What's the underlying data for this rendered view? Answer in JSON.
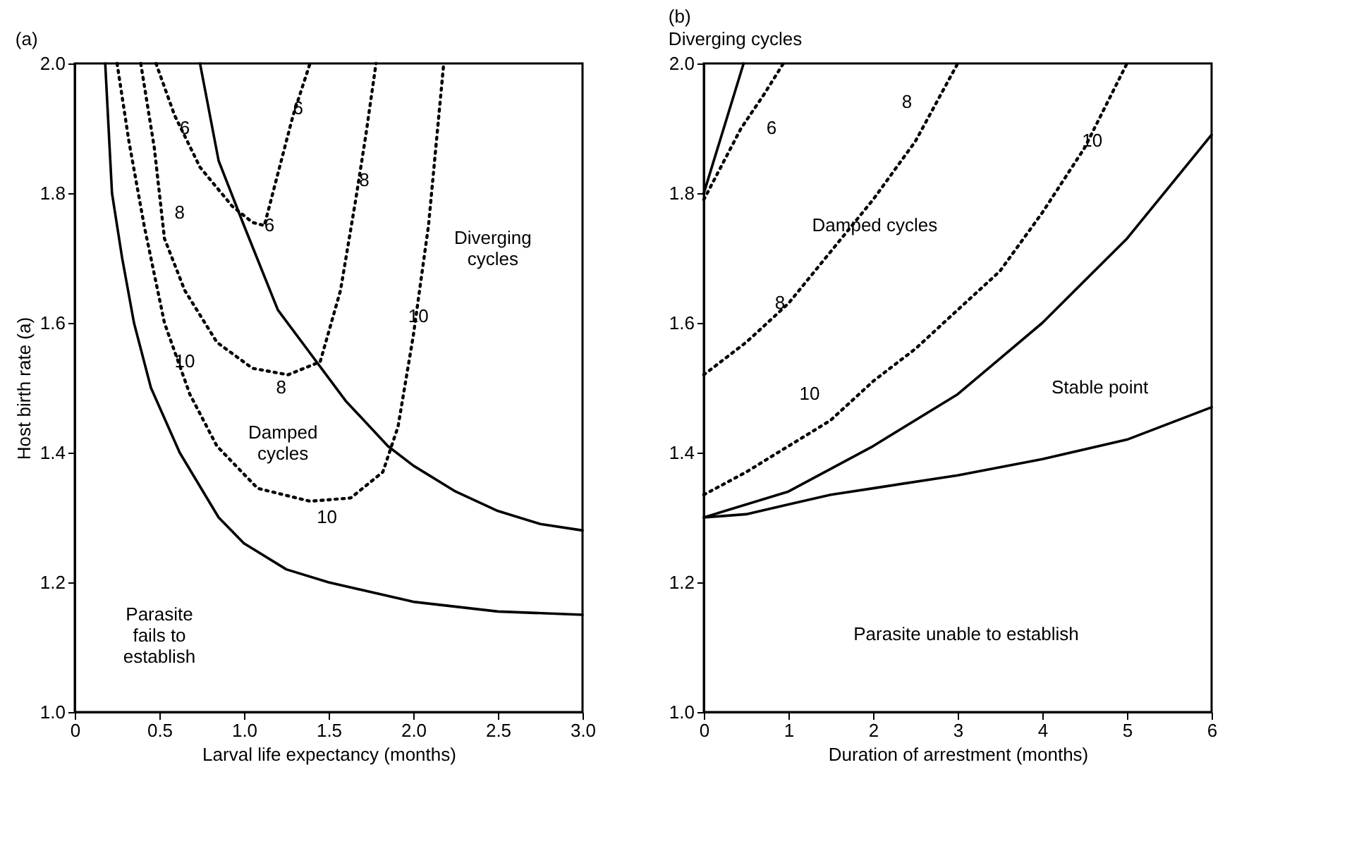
{
  "chart_data": [
    {
      "type": "line",
      "title": "(a)",
      "xlabel": "Larval life expectancy (months)",
      "ylabel": "Host birth rate (a)",
      "xlim": [
        0,
        3.0
      ],
      "ylim": [
        1.0,
        2.0
      ],
      "xticks": [
        0,
        {
          "value": 0.5,
          "label": "0.5"
        },
        {
          "value": 1.0,
          "label": "1.0"
        },
        {
          "value": 1.5,
          "label": "1.5"
        },
        {
          "value": 2.0,
          "label": "2.0"
        },
        {
          "value": 2.5,
          "label": "2.5"
        },
        {
          "value": 3.0,
          "label": "3.0"
        }
      ],
      "yticks": [
        {
          "value": 1.0,
          "label": "1.0"
        },
        {
          "value": 1.2,
          "label": "1.2"
        },
        {
          "value": 1.4,
          "label": "1.4"
        },
        {
          "value": 1.6,
          "label": "1.6"
        },
        {
          "value": 1.8,
          "label": "1.8"
        },
        {
          "value": 2.0,
          "label": "2.0"
        }
      ],
      "grid": false,
      "marker": "none",
      "series": [
        {
          "color": "#000000",
          "line_style": "solid",
          "x": [
            0.18,
            0.22,
            0.28,
            0.35,
            0.45,
            0.62,
            0.85,
            1.0,
            1.25,
            1.5,
            2.0,
            2.5,
            3.0
          ],
          "values": [
            2.0,
            1.8,
            1.7,
            1.6,
            1.5,
            1.4,
            1.3,
            1.26,
            1.22,
            1.2,
            1.17,
            1.155,
            1.15
          ]
        },
        {
          "color": "#000000",
          "line_style": "solid",
          "x": [
            0.74,
            0.85,
            1.0,
            1.2,
            1.4,
            1.6,
            1.85,
            2.0,
            2.25,
            2.5,
            2.75,
            3.0
          ],
          "values": [
            2.0,
            1.85,
            1.75,
            1.62,
            1.55,
            1.48,
            1.41,
            1.38,
            1.34,
            1.31,
            1.29,
            1.28
          ]
        },
        {
          "color": "#000000",
          "line_style": "dotted",
          "x": [
            0.48,
            0.59,
            0.74,
            0.93,
            1.05,
            1.12,
            1.17,
            1.29,
            1.39
          ],
          "values": [
            2.0,
            1.92,
            1.84,
            1.78,
            1.755,
            1.75,
            1.8,
            1.92,
            2.0
          ]
        },
        {
          "color": "#000000",
          "line_style": "dotted",
          "x": [
            0.39,
            0.47,
            0.53,
            0.65,
            0.84,
            1.05,
            1.26,
            1.45,
            1.57,
            1.66,
            1.72,
            1.78
          ],
          "values": [
            2.0,
            1.87,
            1.73,
            1.65,
            1.57,
            1.53,
            1.52,
            1.54,
            1.65,
            1.79,
            1.89,
            2.0
          ]
        },
        {
          "color": "#000000",
          "line_style": "dotted",
          "x": [
            0.25,
            0.32,
            0.41,
            0.53,
            0.68,
            0.84,
            1.08,
            1.39,
            1.63,
            1.82,
            1.91,
            2.0,
            2.09,
            2.18
          ],
          "values": [
            2.0,
            1.88,
            1.75,
            1.6,
            1.49,
            1.41,
            1.345,
            1.325,
            1.33,
            1.37,
            1.44,
            1.58,
            1.75,
            2.0
          ]
        }
      ],
      "annotations": [
        {
          "text": "6",
          "x": 0.65,
          "y": 1.9
        },
        {
          "text": "6",
          "x": 1.32,
          "y": 1.93
        },
        {
          "text": "6",
          "x": 1.15,
          "y": 1.75
        },
        "8",
        "8",
        {
          "text": "8",
          "x": 1.71,
          "y": 1.82
        },
        {
          "text": "10",
          "x": 0.65,
          "y": 1.54
        },
        "10",
        {
          "text": "10",
          "x": 2.03,
          "y": 1.61
        },
        "Diverging\ncycles",
        "Damped\ncycles",
        "Parasite\nfails to\nestablish"
      ]
    },
    {
      "type": "line",
      "title": "(b)",
      "subtitle": "Diverging cycles",
      "xlabel": "Duration of arrestment (months)",
      "xlim": [
        0,
        6
      ],
      "ylim": [
        1.0,
        2.0
      ],
      "xticks": [
        0,
        1,
        2,
        3,
        4,
        5,
        6
      ],
      "yticks": [
        {
          "value": 1.0,
          "label": "1.0"
        },
        {
          "value": 1.2,
          "label": "1.2"
        },
        {
          "value": 1.4,
          "label": "1.4"
        },
        {
          "value": 1.6,
          "label": "1.6"
        },
        {
          "value": 1.8,
          "label": "1.8"
        },
        {
          "value": 2.0,
          "label": "2.0"
        }
      ],
      "grid": false,
      "marker": "none",
      "series": [
        {
          "color": "#000000",
          "line_style": "solid",
          "x": [
            0,
            0.47
          ],
          "values": [
            1.8,
            2.0
          ]
        },
        {
          "color": "#000000",
          "line_style": "dotted",
          "x": [
            0,
            0.2,
            0.44,
            0.7,
            0.94
          ],
          "values": [
            1.79,
            1.84,
            1.9,
            1.95,
            2.0
          ]
        },
        {
          "color": "#000000",
          "line_style": "dotted",
          "x": [
            0,
            0.5,
            1,
            1.5,
            2,
            2.5,
            3.0
          ],
          "values": [
            1.52,
            1.57,
            1.63,
            1.71,
            1.79,
            1.88,
            2.0
          ]
        },
        {
          "color": "#000000",
          "line_style": "dotted",
          "x": [
            0,
            0.5,
            1,
            1.5,
            2,
            2.5,
            3,
            3.5,
            4,
            4.5,
            5
          ],
          "values": [
            1.335,
            1.37,
            1.41,
            1.45,
            1.51,
            1.56,
            1.62,
            1.68,
            1.77,
            1.87,
            2.0
          ]
        },
        {
          "color": "#000000",
          "line_style": "solid",
          "x": [
            0,
            1,
            2,
            3,
            4,
            5,
            6
          ],
          "values": [
            1.3,
            1.34,
            1.41,
            1.49,
            1.6,
            1.73,
            1.89
          ]
        },
        {
          "color": "#000000",
          "line_style": "solid",
          "x": [
            0,
            0.5,
            1,
            1.5,
            2,
            3,
            4,
            5,
            6
          ],
          "values": [
            1.3,
            1.305,
            1.32,
            1.335,
            1.345,
            1.365,
            1.39,
            1.42,
            1.47
          ]
        }
      ],
      "annotations": [
        "6",
        "8",
        {
          "text": "8",
          "x": 0.9,
          "y": 1.63
        },
        {
          "text": "10",
          "x": 4.59,
          "y": 1.88
        },
        "10",
        "Damped cycles",
        "Stable point",
        "Parasite unable to establish"
      ]
    }
  ]
}
